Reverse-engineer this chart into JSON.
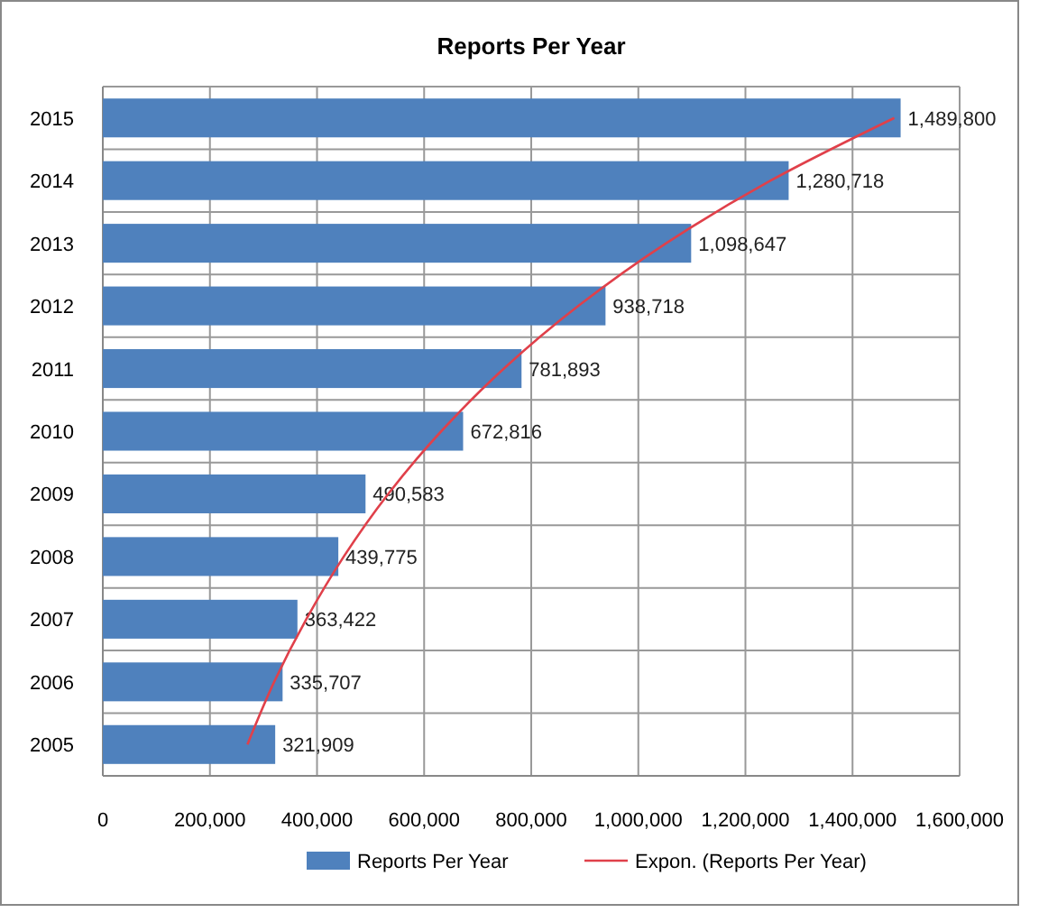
{
  "chart_data": {
    "type": "bar",
    "orientation": "horizontal",
    "title": "Reports Per Year",
    "categories": [
      "2015",
      "2014",
      "2013",
      "2012",
      "2011",
      "2010",
      "2009",
      "2008",
      "2007",
      "2006",
      "2005"
    ],
    "series": [
      {
        "name": "Reports Per Year",
        "color": "#4f81bd",
        "values": [
          1489800,
          1280718,
          1098647,
          938718,
          781893,
          672816,
          490583,
          439775,
          363422,
          335707,
          321909
        ]
      },
      {
        "name": "Expon. (Reports Per Year)",
        "type": "line",
        "color": "#e0404a",
        "values": [
          1478000,
          1247000,
          1052000,
          888000,
          749000,
          632000,
          533000,
          450000,
          380000,
          320000,
          270000
        ]
      }
    ],
    "xlim": [
      0,
      1600000
    ],
    "xticks": [
      0,
      {
        "value": 200000,
        "label": "200,000"
      },
      {
        "value": 400000,
        "label": "400,000"
      },
      {
        "value": 600000,
        "label": "600,000"
      },
      {
        "value": 800000,
        "label": "800,000"
      },
      {
        "value": 1000000,
        "label": "1,000,000"
      },
      {
        "value": 1200000,
        "label": "1,200,000"
      },
      {
        "value": 1400000,
        "label": "1,400,000"
      },
      {
        "value": 1600000,
        "label": "1,600,000"
      }
    ],
    "value_labels": [
      "1,489,800",
      "1,280,718",
      "1,098,647",
      "938,718",
      "781,893",
      "672,816",
      "490,583",
      "439,775",
      "363,422",
      "335,707",
      "321,909"
    ],
    "grid": true,
    "legend": "bottom",
    "marker": "none"
  }
}
